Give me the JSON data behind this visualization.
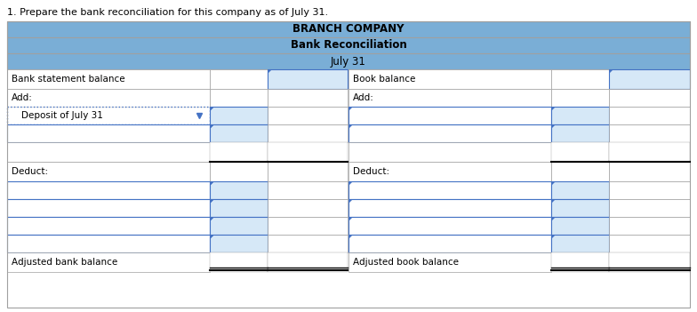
{
  "title_line1": "BRANCH COMPANY",
  "title_line2": "Bank Reconciliation",
  "title_line3": "July 31",
  "header_bg": "#7aaed6",
  "blue_cell_bg": "#d6e8f7",
  "blue_border_color": "#4472c4",
  "gray_border_color": "#a0a0a0",
  "black_color": "#000000",
  "white": "#ffffff",
  "intro_text": "1. Prepare the bank reconciliation for this company as of July 31.",
  "left_labels": [
    "Bank statement balance",
    "Add:",
    "  Deposit of July 31",
    "",
    "",
    "Deduct:",
    "",
    "",
    "",
    "",
    "Adjusted bank balance"
  ],
  "right_labels": [
    "Book balance",
    "Add:",
    "",
    "",
    "",
    "Deduct:",
    "",
    "",
    "",
    "",
    "Adjusted book balance"
  ],
  "fig_width": 7.84,
  "fig_height": 3.51,
  "dpi": 100
}
